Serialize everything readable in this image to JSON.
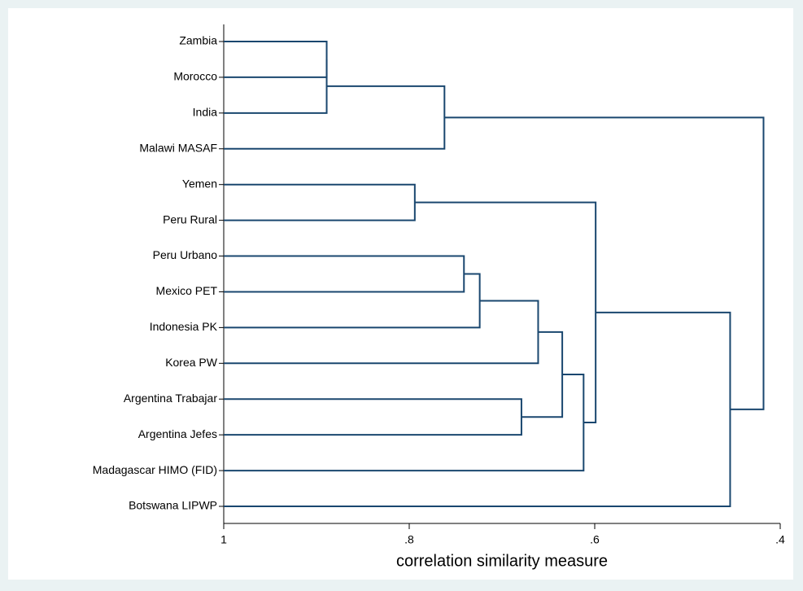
{
  "chart_data": {
    "type": "dendrogram",
    "xlabel": "correlation similarity measure",
    "leaves": [
      "Zambia",
      "Morocco",
      "India",
      "Malawi MASAF",
      "Yemen",
      "Peru Rural",
      "Peru Urbano",
      "Mexico PET",
      "Indonesia PK",
      "Korea PW",
      "Argentina Trabajar",
      "Argentina Jefes",
      "Madagascar HIMO (FID)",
      "Botswana LIPWP"
    ],
    "merges": [
      {
        "children": [
          0,
          1
        ],
        "height": 0.889
      },
      {
        "children": [
          14,
          2
        ],
        "height": 0.889
      },
      {
        "children": [
          15,
          3
        ],
        "height": 0.762
      },
      {
        "children": [
          4,
          5
        ],
        "height": 0.794
      },
      {
        "children": [
          6,
          7
        ],
        "height": 0.741
      },
      {
        "children": [
          18,
          8
        ],
        "height": 0.724
      },
      {
        "children": [
          19,
          9
        ],
        "height": 0.661
      },
      {
        "children": [
          10,
          11
        ],
        "height": 0.679
      },
      {
        "children": [
          20,
          21
        ],
        "height": 0.635
      },
      {
        "children": [
          22,
          12
        ],
        "height": 0.612
      },
      {
        "children": [
          17,
          23
        ],
        "height": 0.599
      },
      {
        "children": [
          24,
          13
        ],
        "height": 0.454
      },
      {
        "children": [
          16,
          25
        ],
        "height": 0.418
      }
    ],
    "xlim": [
      1,
      0.4
    ],
    "xticks": [
      1,
      {
        "value": 0.8,
        "label": ".8"
      },
      {
        "value": 0.6,
        "label": ".6"
      },
      {
        "value": 0.4,
        "label": ".4"
      }
    ],
    "color": "#1a476f"
  }
}
